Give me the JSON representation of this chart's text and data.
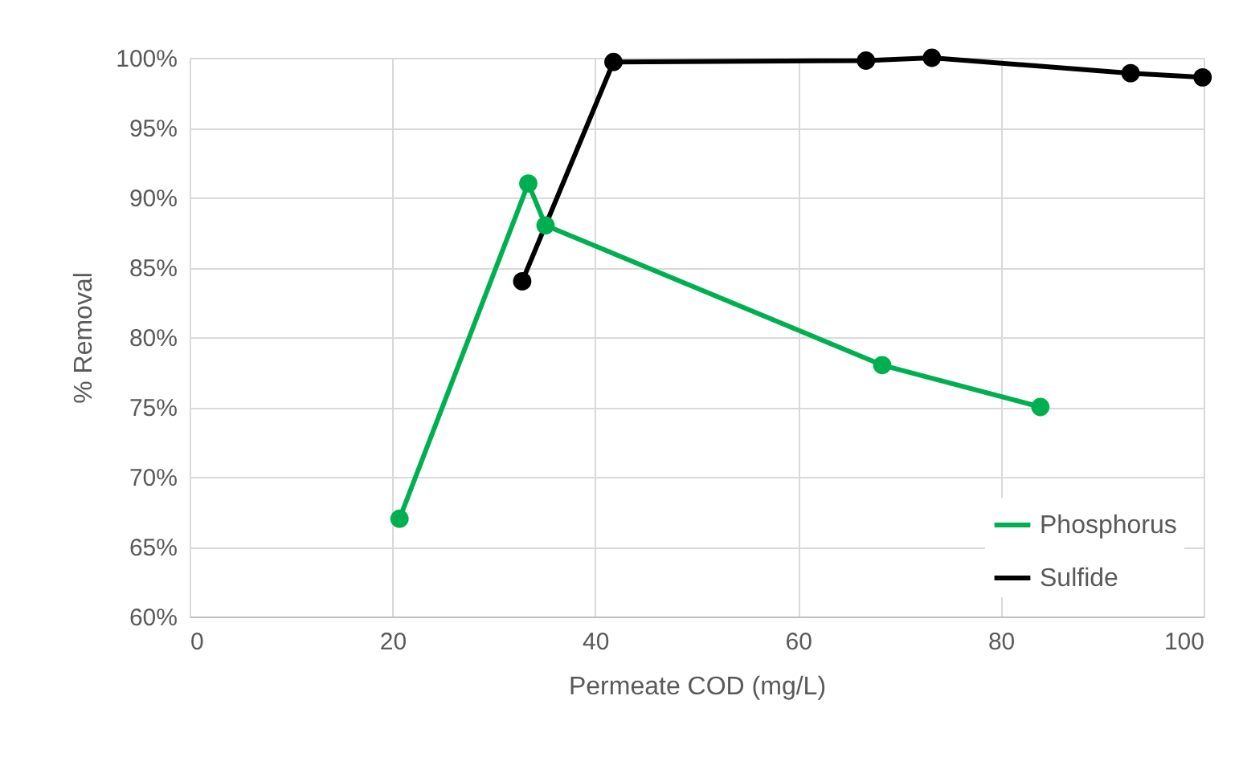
{
  "chart_data": {
    "type": "line",
    "xlabel": "Permeate COD (mg/L)",
    "ylabel": "% Removal",
    "series": [
      {
        "name": "Phosphorus",
        "color": "#00b050",
        "x": [
          20.7,
          33.4,
          35.1,
          68.3,
          83.9
        ],
        "values": [
          67,
          91,
          88,
          78,
          75
        ]
      },
      {
        "name": "Sulfide",
        "color": "#000000",
        "x": [
          32.8,
          41.8,
          66.7,
          73.2,
          92.8,
          99.9
        ],
        "values": [
          84,
          99.7,
          99.8,
          100,
          98.9,
          98.6
        ]
      }
    ],
    "xlim": [
      0,
      100
    ],
    "xticks": [
      0,
      20,
      40,
      60,
      80,
      100
    ],
    "ylim": [
      60,
      100
    ],
    "yticks": [
      {
        "value": 60,
        "label": "60%"
      },
      {
        "value": 65,
        "label": "65%"
      },
      {
        "value": 70,
        "label": "70%"
      },
      {
        "value": 75,
        "label": "75%"
      },
      {
        "value": 80,
        "label": "80%"
      },
      {
        "value": 85,
        "label": "85%"
      },
      {
        "value": 90,
        "label": "90%"
      },
      {
        "value": 95,
        "label": "95%"
      },
      {
        "value": 100,
        "label": "100%"
      }
    ],
    "grid": true,
    "legend": "bottom right",
    "marker": "circle",
    "line_style": "solid"
  }
}
